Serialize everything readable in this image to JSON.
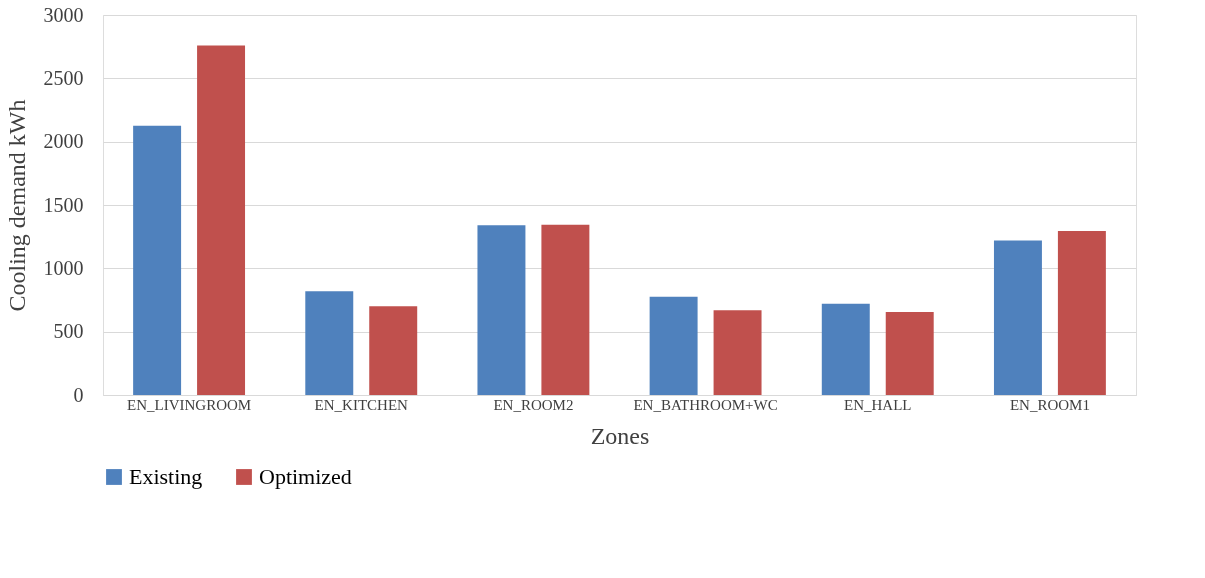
{
  "chart_data": {
    "type": "bar",
    "xlabel": "Zones",
    "ylabel": "Cooling demand kWh",
    "categories": [
      "EN_LIVINGROOM",
      "EN_KITCHEN",
      "EN_ROOM2",
      "EN_BATHROOM+WC",
      "EN_HALL",
      "EN_ROOM1"
    ],
    "series": [
      {
        "name": "Existing",
        "color": "#4f81bd",
        "values": [
          2125,
          820,
          1340,
          775,
          720,
          1220
        ]
      },
      {
        "name": "Optimized",
        "color": "#c0504d",
        "values": [
          2760,
          700,
          1345,
          670,
          655,
          1295
        ]
      }
    ],
    "ylim": [
      0,
      3000
    ],
    "yticks": [
      0,
      500,
      1000,
      1500,
      2000,
      2500,
      3000
    ],
    "grid": "y",
    "legend": "bottom"
  }
}
